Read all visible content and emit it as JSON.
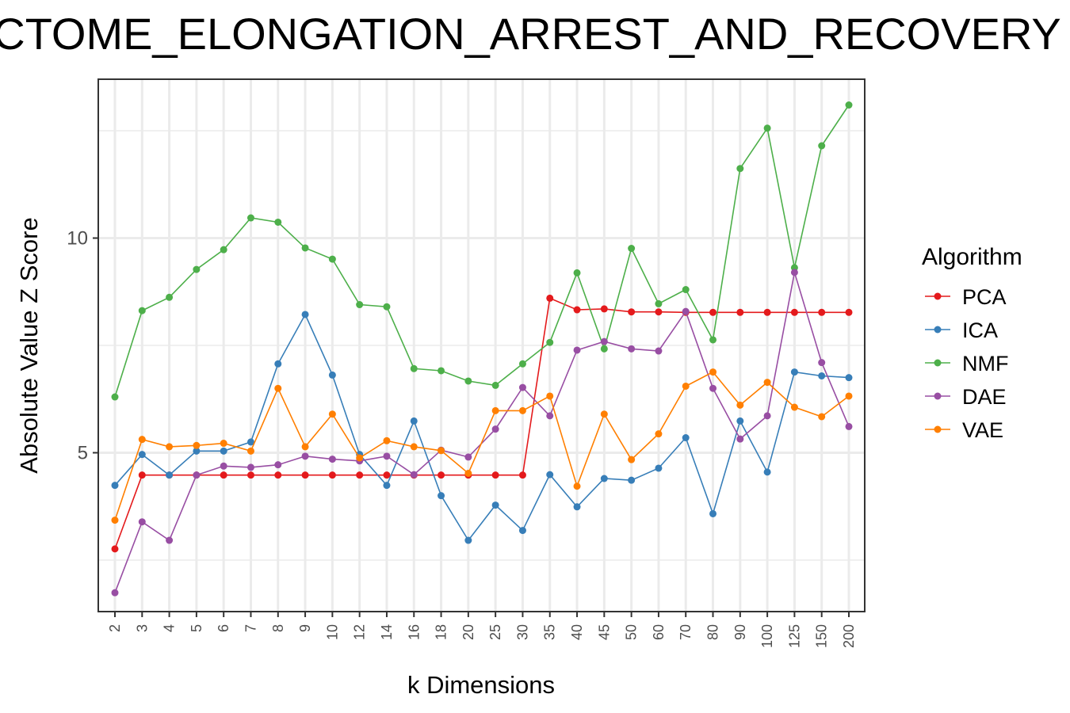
{
  "chart_data": {
    "type": "line",
    "title": "CTOME_ELONGATION_ARREST_AND_RECOVERY",
    "xlabel": "k Dimensions",
    "ylabel": "Absolute Value Z Score",
    "categories": [
      "2",
      "3",
      "4",
      "5",
      "6",
      "7",
      "8",
      "9",
      "10",
      "12",
      "14",
      "16",
      "18",
      "20",
      "25",
      "30",
      "35",
      "40",
      "45",
      "50",
      "60",
      "70",
      "80",
      "90",
      "100",
      "125",
      "150",
      "200"
    ],
    "ylim": [
      1.3,
      13.7
    ],
    "yticks": [
      5,
      10
    ],
    "grid": true,
    "legend_title": "Algorithm",
    "legend_position": "right",
    "series": [
      {
        "name": "PCA",
        "color": "#e41a1c",
        "values": [
          2.76,
          4.48,
          4.48,
          4.48,
          4.48,
          4.48,
          4.48,
          4.48,
          4.48,
          4.48,
          4.48,
          4.48,
          4.48,
          4.48,
          4.48,
          4.48,
          8.6,
          8.33,
          8.35,
          8.28,
          8.28,
          8.27,
          8.27,
          8.27,
          8.27,
          8.27,
          8.27,
          8.27
        ]
      },
      {
        "name": "ICA",
        "color": "#377eb8",
        "values": [
          4.24,
          4.96,
          4.48,
          5.04,
          5.04,
          5.25,
          7.07,
          8.22,
          6.81,
          4.96,
          4.24,
          5.74,
          4.0,
          2.96,
          3.78,
          3.19,
          4.49,
          3.74,
          4.4,
          4.36,
          4.64,
          5.35,
          3.58,
          5.74,
          4.55,
          6.88,
          6.79,
          6.75
        ]
      },
      {
        "name": "NMF",
        "color": "#4daf4a",
        "values": [
          6.3,
          8.31,
          8.62,
          9.27,
          9.73,
          10.47,
          10.37,
          9.77,
          9.51,
          8.45,
          8.4,
          6.96,
          6.91,
          6.67,
          6.57,
          7.07,
          7.57,
          9.19,
          7.42,
          9.76,
          8.47,
          8.8,
          7.63,
          11.62,
          12.56,
          9.31,
          12.15,
          13.1
        ]
      },
      {
        "name": "DAE",
        "color": "#984ea3",
        "values": [
          1.74,
          3.39,
          2.96,
          4.48,
          4.69,
          4.66,
          4.72,
          4.92,
          4.85,
          4.81,
          4.92,
          4.49,
          5.06,
          4.9,
          5.55,
          6.52,
          5.86,
          7.39,
          7.59,
          7.42,
          7.37,
          8.29,
          6.5,
          5.32,
          5.86,
          9.2,
          7.1,
          5.61
        ]
      },
      {
        "name": "VAE",
        "color": "#ff7f00",
        "values": [
          3.43,
          5.31,
          5.14,
          5.17,
          5.22,
          5.04,
          6.5,
          5.14,
          5.9,
          4.88,
          5.28,
          5.14,
          5.05,
          4.52,
          5.98,
          5.98,
          6.32,
          4.22,
          5.9,
          4.84,
          5.44,
          6.55,
          6.88,
          6.11,
          6.64,
          6.06,
          5.84,
          6.32
        ]
      }
    ]
  }
}
